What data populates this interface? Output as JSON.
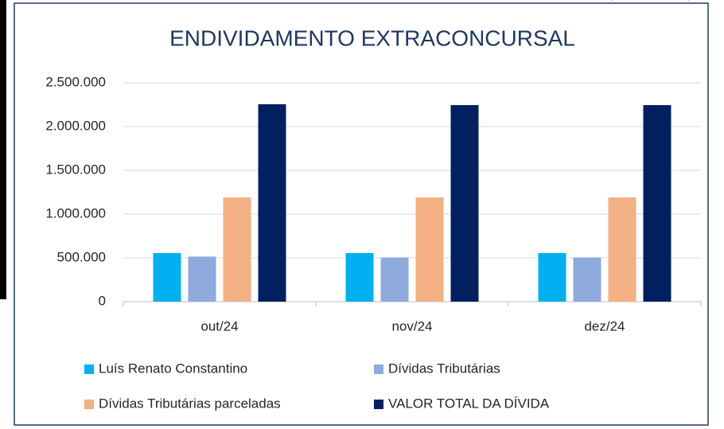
{
  "chart_data": {
    "type": "bar",
    "title": "ENDIVIDAMENTO EXTRACONCURSAL",
    "categories": [
      "out/24",
      "nov/24",
      "dez/24"
    ],
    "series": [
      {
        "name": "Luís Renato Constantino",
        "color": "#00b0f0",
        "values": [
          555000,
          555000,
          555000
        ]
      },
      {
        "name": "Dívidas Tributárias",
        "color": "#8faadc",
        "values": [
          515000,
          505000,
          505000
        ]
      },
      {
        "name": "Dívidas Tributárias  parceladas",
        "color": "#f4b183",
        "values": [
          1190000,
          1190000,
          1190000
        ]
      },
      {
        "name": "VALOR TOTAL DA DÍVIDA",
        "color": "#002060",
        "values": [
          2255000,
          2245000,
          2245000
        ]
      }
    ],
    "ylim": [
      0,
      2500000
    ],
    "yticks": [
      0,
      {
        "value": 500000,
        "label": "500.000"
      },
      {
        "value": 1000000,
        "label": "1.000.000"
      },
      {
        "value": 1500000,
        "label": "1.500.000"
      },
      {
        "value": 2000000,
        "label": "2.000.000"
      },
      {
        "value": 2500000,
        "label": "2.500.000"
      }
    ],
    "grid": true,
    "legend": "bottom"
  }
}
